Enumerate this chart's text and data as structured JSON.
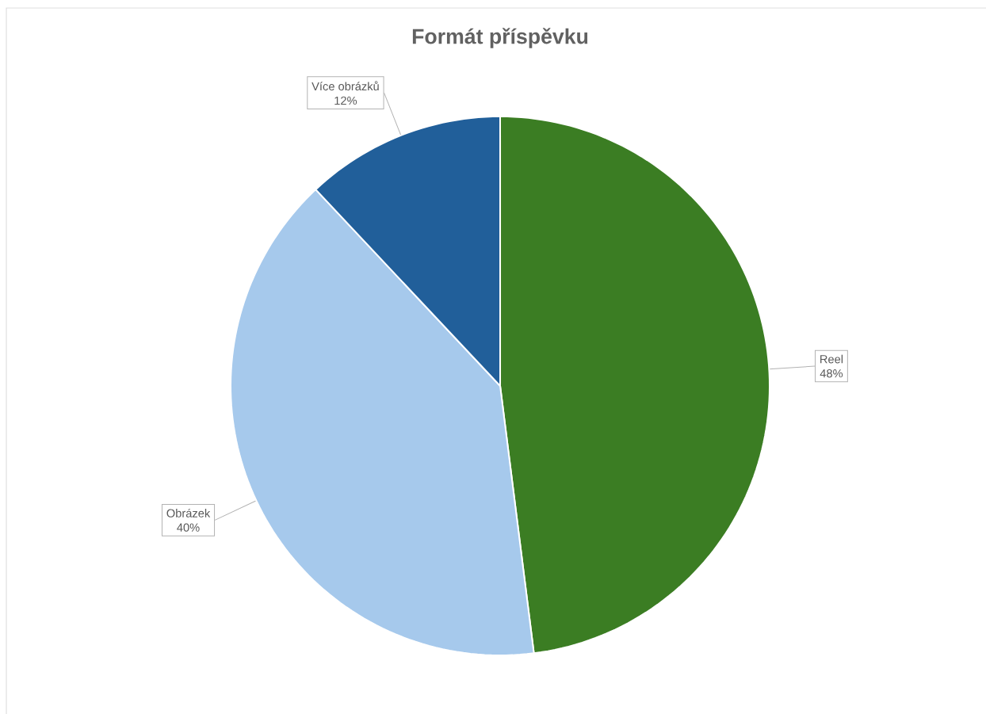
{
  "chart_data": {
    "type": "pie",
    "title": "Formát příspěvku",
    "categories": [
      "Reel",
      "Obrázek",
      "Více obrázků"
    ],
    "values": [
      48,
      40,
      12
    ],
    "value_labels": [
      "48%",
      "40%",
      "12%"
    ],
    "colors": [
      "#3b7d23",
      "#a6c9ec",
      "#215f9a"
    ]
  }
}
